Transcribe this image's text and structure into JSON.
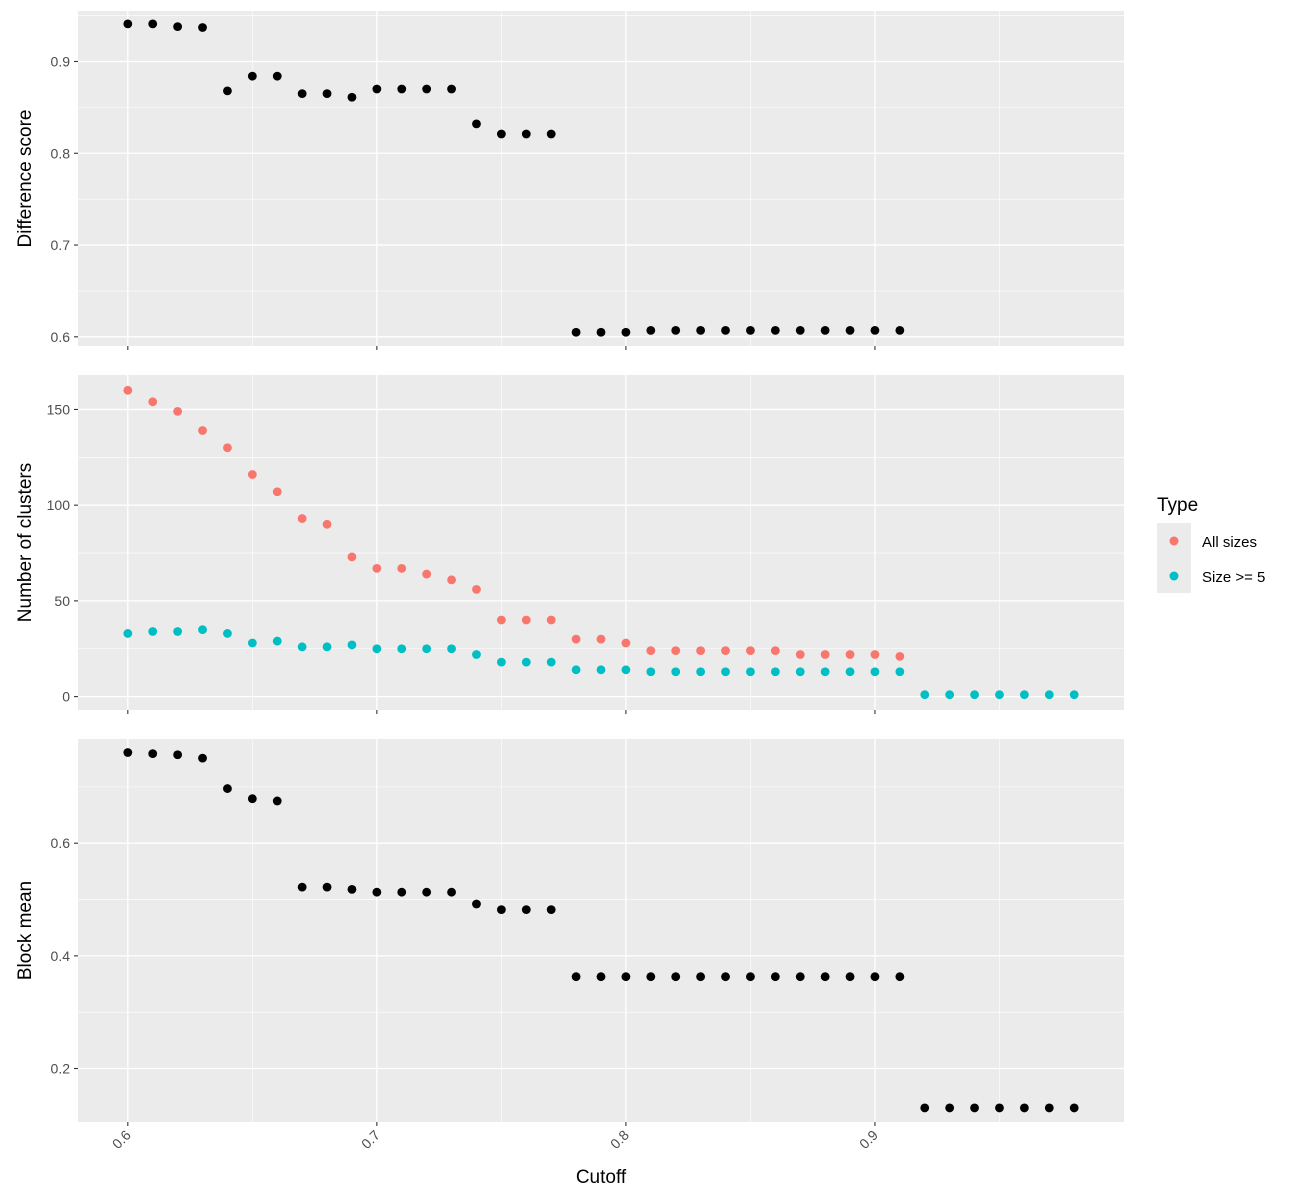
{
  "chart_data": {
    "type": "scatter",
    "layout": "faceted-vertical",
    "shared_xlabel": "Cutoff",
    "x_ticks": [
      0.6,
      0.7,
      0.8,
      0.9
    ],
    "xlim": [
      0.58,
      1.0
    ],
    "grid": true,
    "legend": {
      "title": "Type",
      "placement": "right",
      "entries": [
        {
          "label": "All sizes",
          "color": "#F8766D"
        },
        {
          "label": "Size >= 5",
          "color": "#00BFC4"
        }
      ]
    },
    "panels": [
      {
        "ylabel": "Difference score",
        "ylim": [
          0.59,
          0.955
        ],
        "y_ticks": [
          0.6,
          0.7,
          0.8,
          0.9
        ],
        "y_tick_labels": [
          "0.6",
          "0.7",
          "0.8",
          "0.9"
        ],
        "series": [
          {
            "color": "#000000",
            "x": [
              0.6,
              0.61,
              0.62,
              0.63,
              0.64,
              0.65,
              0.66,
              0.67,
              0.68,
              0.69,
              0.7,
              0.71,
              0.72,
              0.73,
              0.74,
              0.75,
              0.76,
              0.77,
              0.78,
              0.79,
              0.8,
              0.81,
              0.82,
              0.83,
              0.84,
              0.85,
              0.86,
              0.87,
              0.88,
              0.89,
              0.9,
              0.91
            ],
            "y": [
              0.941,
              0.941,
              0.938,
              0.937,
              0.868,
              0.884,
              0.884,
              0.865,
              0.865,
              0.861,
              0.87,
              0.87,
              0.87,
              0.87,
              0.832,
              0.821,
              0.821,
              0.821,
              0.605,
              0.605,
              0.605,
              0.607,
              0.607,
              0.607,
              0.607,
              0.607,
              0.607,
              0.607,
              0.607,
              0.607,
              0.607,
              0.607
            ]
          }
        ]
      },
      {
        "ylabel": "Number of clusters",
        "ylim": [
          -7,
          168
        ],
        "y_ticks": [
          0,
          50,
          100,
          150
        ],
        "y_tick_labels": [
          "0",
          "50",
          "100",
          "150"
        ],
        "series": [
          {
            "name": "All sizes",
            "color": "#F8766D",
            "x": [
              0.6,
              0.61,
              0.62,
              0.63,
              0.64,
              0.65,
              0.66,
              0.67,
              0.68,
              0.69,
              0.7,
              0.71,
              0.72,
              0.73,
              0.74,
              0.75,
              0.76,
              0.77,
              0.78,
              0.79,
              0.8,
              0.81,
              0.82,
              0.83,
              0.84,
              0.85,
              0.86,
              0.87,
              0.88,
              0.89,
              0.9,
              0.91
            ],
            "y": [
              160,
              154,
              149,
              139,
              130,
              116,
              107,
              93,
              90,
              73,
              67,
              67,
              64,
              61,
              56,
              40,
              40,
              40,
              30,
              30,
              28,
              24,
              24,
              24,
              24,
              24,
              24,
              22,
              22,
              22,
              22,
              21
            ]
          },
          {
            "name": "Size >= 5",
            "color": "#00BFC4",
            "x": [
              0.6,
              0.61,
              0.62,
              0.63,
              0.64,
              0.65,
              0.66,
              0.67,
              0.68,
              0.69,
              0.7,
              0.71,
              0.72,
              0.73,
              0.74,
              0.75,
              0.76,
              0.77,
              0.78,
              0.79,
              0.8,
              0.81,
              0.82,
              0.83,
              0.84,
              0.85,
              0.86,
              0.87,
              0.88,
              0.89,
              0.9,
              0.91,
              0.92,
              0.93,
              0.94,
              0.95,
              0.96,
              0.97,
              0.98
            ],
            "y": [
              33,
              34,
              34,
              35,
              33,
              28,
              29,
              26,
              26,
              27,
              25,
              25,
              25,
              25,
              22,
              18,
              18,
              18,
              14,
              14,
              14,
              13,
              13,
              13,
              13,
              13,
              13,
              13,
              13,
              13,
              13,
              13,
              1,
              1,
              1,
              1,
              1,
              1,
              1
            ]
          }
        ]
      },
      {
        "ylabel": "Block mean",
        "ylim": [
          0.105,
          0.785
        ],
        "y_ticks": [
          0.2,
          0.4,
          0.6
        ],
        "y_tick_labels": [
          "0.2",
          "0.4",
          "0.6"
        ],
        "series": [
          {
            "color": "#000000",
            "x": [
              0.6,
              0.61,
              0.62,
              0.63,
              0.64,
              0.65,
              0.66,
              0.67,
              0.68,
              0.69,
              0.7,
              0.71,
              0.72,
              0.73,
              0.74,
              0.75,
              0.76,
              0.77,
              0.78,
              0.79,
              0.8,
              0.81,
              0.82,
              0.83,
              0.84,
              0.85,
              0.86,
              0.87,
              0.88,
              0.89,
              0.9,
              0.91,
              0.92,
              0.93,
              0.94,
              0.95,
              0.96,
              0.97,
              0.98
            ],
            "y": [
              0.761,
              0.759,
              0.757,
              0.751,
              0.697,
              0.679,
              0.675,
              0.522,
              0.522,
              0.518,
              0.513,
              0.513,
              0.513,
              0.513,
              0.492,
              0.482,
              0.482,
              0.482,
              0.363,
              0.363,
              0.363,
              0.363,
              0.363,
              0.363,
              0.363,
              0.363,
              0.363,
              0.363,
              0.363,
              0.363,
              0.363,
              0.363,
              0.13,
              0.13,
              0.13,
              0.13,
              0.13,
              0.13,
              0.13
            ]
          }
        ]
      }
    ]
  }
}
